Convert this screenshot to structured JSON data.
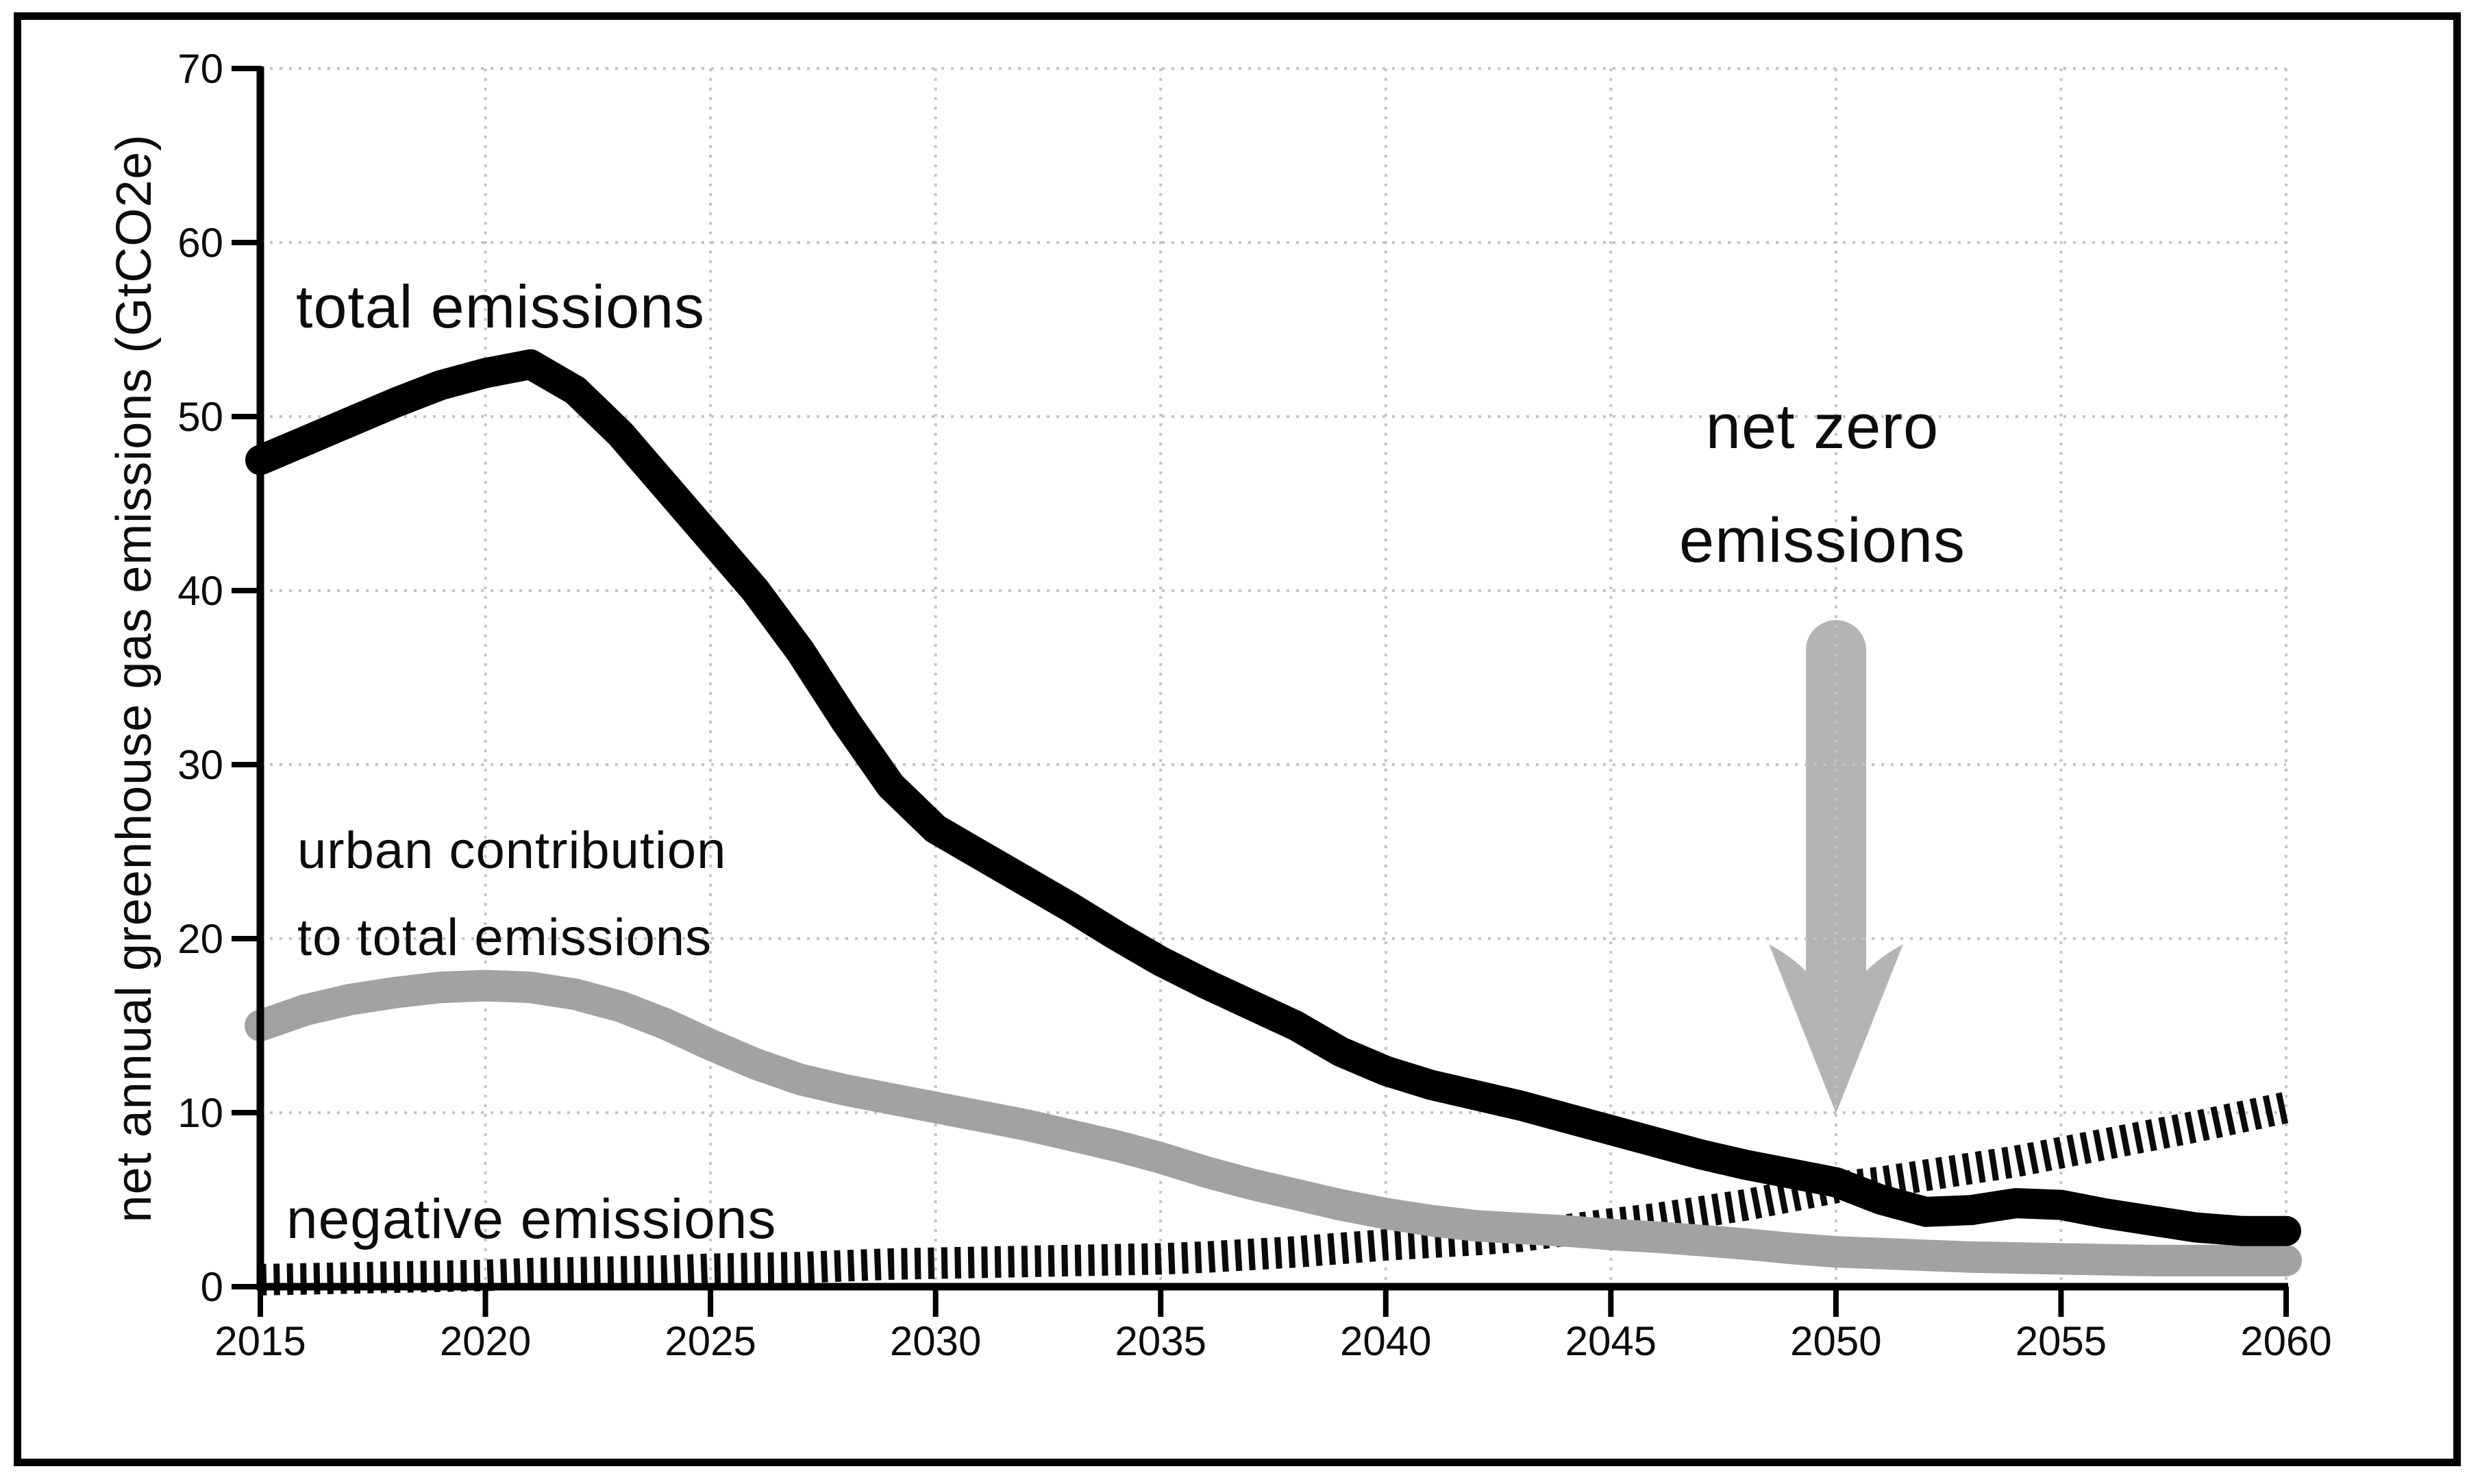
{
  "chart_data": {
    "type": "line",
    "title": "",
    "xlabel": "",
    "ylabel": "net annual greenhouse gas emissions (GtCO2e)",
    "xlim": [
      2015,
      2060
    ],
    "ylim": [
      0,
      70
    ],
    "grid": "dotted",
    "legend_position": "inline-labels",
    "x_ticks": [
      2015,
      2020,
      2025,
      2030,
      2035,
      2040,
      2045,
      2050,
      2055,
      2060
    ],
    "y_ticks": [
      0,
      10,
      20,
      30,
      40,
      50,
      60,
      70
    ],
    "years": [
      2015,
      2016,
      2017,
      2018,
      2019,
      2020,
      2021,
      2022,
      2023,
      2024,
      2025,
      2026,
      2027,
      2028,
      2029,
      2030,
      2031,
      2032,
      2033,
      2034,
      2035,
      2036,
      2037,
      2038,
      2039,
      2040,
      2041,
      2042,
      2043,
      2044,
      2045,
      2046,
      2047,
      2048,
      2049,
      2050,
      2051,
      2052,
      2053,
      2054,
      2055,
      2056,
      2057,
      2058,
      2059,
      2060
    ],
    "series": [
      {
        "name": "total emissions",
        "style": "solid",
        "color": "#000000",
        "stroke_width": 44,
        "values": [
          47.5,
          48.6,
          49.7,
          50.8,
          51.8,
          52.5,
          53.0,
          51.5,
          49.0,
          46.0,
          43.0,
          40.0,
          36.5,
          32.5,
          28.8,
          26.3,
          24.8,
          23.3,
          21.8,
          20.2,
          18.7,
          17.4,
          16.2,
          15.0,
          13.5,
          12.4,
          11.6,
          11.0,
          10.4,
          9.7,
          9.0,
          8.3,
          7.6,
          7.0,
          6.5,
          6.0,
          5.0,
          4.3,
          4.4,
          4.8,
          4.7,
          4.2,
          3.8,
          3.4,
          3.2,
          3.2
        ]
      },
      {
        "name": "urban contribution to total emissions",
        "style": "solid",
        "color": "#a2a2a2",
        "stroke_width": 46,
        "values": [
          15.0,
          15.9,
          16.5,
          16.9,
          17.2,
          17.3,
          17.2,
          16.8,
          16.1,
          15.1,
          13.9,
          12.8,
          11.9,
          11.3,
          10.8,
          10.3,
          9.8,
          9.3,
          8.7,
          8.1,
          7.4,
          6.6,
          5.9,
          5.3,
          4.7,
          4.2,
          3.8,
          3.5,
          3.35,
          3.2,
          3.0,
          2.85,
          2.65,
          2.45,
          2.2,
          2.0,
          1.9,
          1.8,
          1.7,
          1.65,
          1.6,
          1.55,
          1.5,
          1.5,
          1.5,
          1.5
        ]
      },
      {
        "name": "negative emissions",
        "style": "hatched-dashed",
        "color": "#0a0a0a",
        "stroke_width": 46,
        "values": [
          0.4,
          0.45,
          0.5,
          0.55,
          0.6,
          0.65,
          0.75,
          0.8,
          0.85,
          0.9,
          1.0,
          1.05,
          1.1,
          1.2,
          1.3,
          1.35,
          1.4,
          1.45,
          1.5,
          1.55,
          1.6,
          1.7,
          1.85,
          2.0,
          2.2,
          2.4,
          2.55,
          2.7,
          2.9,
          3.25,
          3.6,
          3.9,
          4.3,
          4.7,
          5.2,
          5.7,
          6.0,
          6.4,
          6.8,
          7.2,
          7.7,
          8.2,
          8.7,
          9.2,
          9.75,
          10.3
        ]
      }
    ],
    "annotations": {
      "total_label": "total emissions",
      "urban_label_line1": "urban contribution",
      "urban_label_line2": "to total emissions",
      "negative_label": "negative emissions",
      "netzero_line1": "net zero",
      "netzero_line2": "emissions",
      "netzero_arrow": {
        "x": 2050,
        "tip_value": 10,
        "color": "#b4b4b4"
      }
    }
  }
}
